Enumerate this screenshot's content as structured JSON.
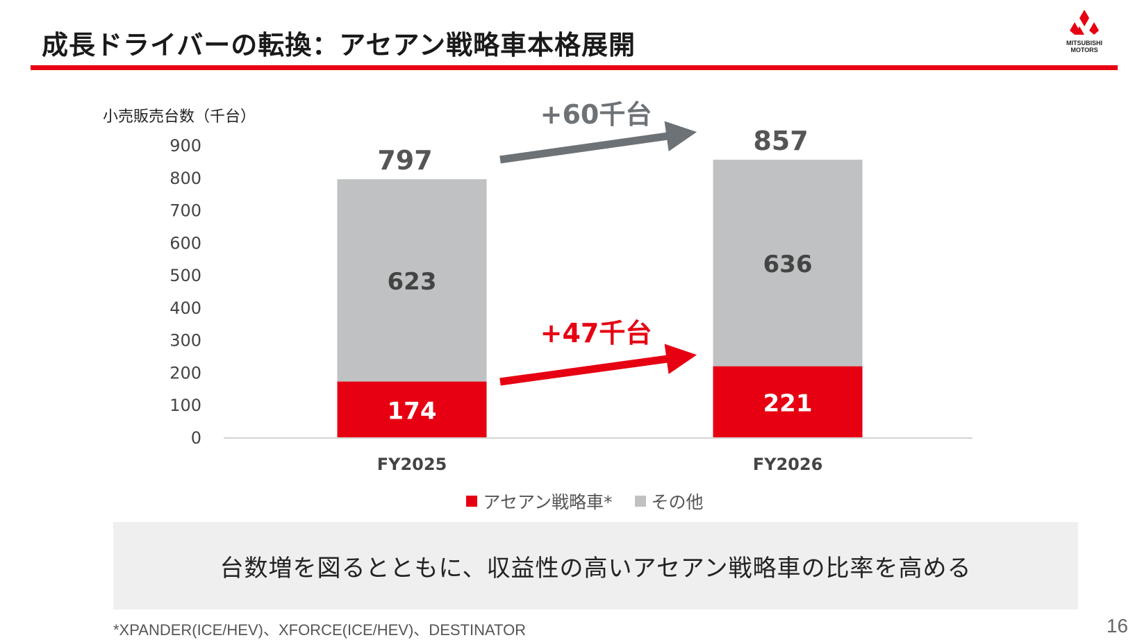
{
  "slide": {
    "title": "成長ドライバーの転換：アセアン戦略車本格展開",
    "logo": {
      "line1": "MITSUBISHI",
      "line2": "MOTORS",
      "icon": "three-diamonds-icon"
    },
    "message": "台数増を図るとともに、収益性の高いアセアン戦略車の比率を高める",
    "footnote": "*XPANDER(ICE/HEV)、XFORCE(ICE/HEV)、DESTINATOR",
    "page_number": "16"
  },
  "colors": {
    "accent": "#e60012",
    "other": "#bfc1c3",
    "arrow_gray": "#6d7276"
  },
  "chart_data": {
    "type": "bar",
    "stacked": true,
    "ylabel": "小売販売台数（千台）",
    "ylim": [
      0,
      900
    ],
    "yticks": [
      0,
      100,
      200,
      300,
      400,
      500,
      600,
      700,
      800,
      900
    ],
    "categories": [
      "FY2025",
      "FY2026"
    ],
    "series": [
      {
        "name": "アセアン戦略車*",
        "values": [
          174,
          221
        ],
        "color": "#e60012"
      },
      {
        "name": "その他",
        "values": [
          623,
          636
        ],
        "color": "#bfc1c3"
      }
    ],
    "totals": [
      797,
      857
    ],
    "annotations": [
      {
        "text": "+60千台",
        "color": "#6d7276"
      },
      {
        "text": "+47千台",
        "color": "#e60012"
      }
    ],
    "grid": false,
    "legend_position": "bottom"
  }
}
